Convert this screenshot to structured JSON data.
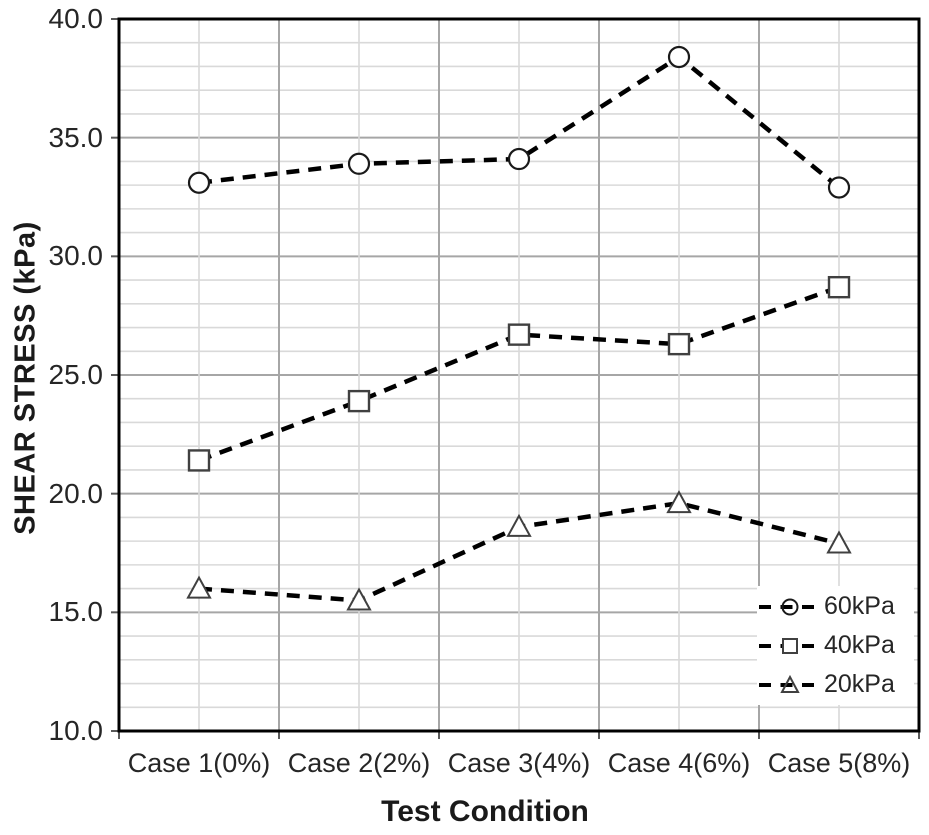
{
  "chart_data": {
    "type": "line",
    "title": "",
    "xlabel": "Test Condition",
    "ylabel": "SHEAR STRESS (kPa)",
    "categories": [
      "Case 1(0%)",
      "Case 2(2%)",
      "Case 3(4%)",
      "Case 4(6%)",
      "Case 5(8%)"
    ],
    "series": [
      {
        "name": "60kPa",
        "marker": "circle",
        "values": [
          33.1,
          33.9,
          34.1,
          38.4,
          32.9
        ]
      },
      {
        "name": "40kPa",
        "marker": "square",
        "values": [
          21.4,
          23.9,
          26.7,
          26.3,
          28.7
        ]
      },
      {
        "name": "20kPa",
        "marker": "triangle",
        "values": [
          16.0,
          15.5,
          18.6,
          19.6,
          17.9
        ]
      }
    ],
    "ylim": [
      10.0,
      40.0
    ],
    "y_major_step": 5.0,
    "y_minor_step": 1.0,
    "y_tick_labels": [
      "40.0",
      "35.0",
      "30.0",
      "25.0",
      "20.0",
      "15.0",
      "10.0"
    ],
    "line_style": "dashed",
    "line_color": "#000000",
    "marker_fill": "#ffffff",
    "frame_color": "#000000",
    "grid": {
      "on": true,
      "major_color": "#a6a6a6",
      "minor_color": "#d9d9d9"
    },
    "tick_color": "#595959",
    "legend_position": "inside-bottom-right",
    "legend_entries": [
      "60kPa",
      "40kPa",
      "20kPa"
    ]
  }
}
